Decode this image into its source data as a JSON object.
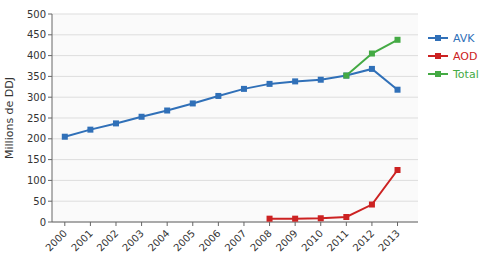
{
  "chart_data": {
    "type": "line",
    "ylabel": "Millions de DDJ",
    "x": [
      2000,
      2001,
      2002,
      2003,
      2004,
      2005,
      2006,
      2007,
      2008,
      2009,
      2010,
      2011,
      2012,
      2013
    ],
    "xlim": [
      1999.5,
      2013.8
    ],
    "xticks": [
      2000,
      2001,
      2002,
      2003,
      2004,
      2005,
      2006,
      2007,
      2008,
      2009,
      2010,
      2011,
      2012,
      2013
    ],
    "ylim": [
      0,
      500
    ],
    "yticks": [
      0,
      50,
      100,
      150,
      200,
      250,
      300,
      350,
      400,
      450,
      500
    ],
    "grid": true,
    "legend": "right",
    "marker": "square",
    "series": [
      {
        "name": "AVK",
        "color": "#3070b8",
        "values": [
          205,
          222,
          237,
          253,
          268,
          285,
          303,
          320,
          332,
          338,
          342,
          352,
          368,
          318
        ]
      },
      {
        "name": "AOD",
        "color": "#cc2222",
        "values": [
          null,
          null,
          null,
          null,
          null,
          null,
          null,
          null,
          8,
          8,
          9,
          12,
          42,
          125
        ]
      },
      {
        "name": "Total",
        "color": "#44aa44",
        "values": [
          null,
          null,
          null,
          null,
          null,
          null,
          null,
          null,
          null,
          null,
          null,
          352,
          405,
          438
        ]
      }
    ]
  }
}
